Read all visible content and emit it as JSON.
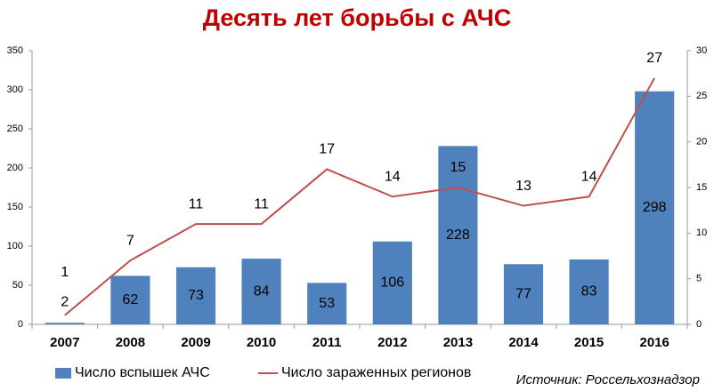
{
  "chart_data": {
    "type": "bar",
    "title": "Десять лет борьбы с АЧС",
    "categories": [
      "2007",
      "2008",
      "2009",
      "2010",
      "2011",
      "2012",
      "2013",
      "2014",
      "2015",
      "2016"
    ],
    "series": [
      {
        "name": "Число вспышек АЧС",
        "color": "#4f81bd",
        "values": [
          2,
          62,
          73,
          84,
          53,
          106,
          228,
          77,
          83,
          298
        ]
      },
      {
        "name": "Число зараженных регионов",
        "color": "#c0504d",
        "type": "line",
        "axis": "y2",
        "values": [
          1,
          7,
          11,
          11,
          17,
          14,
          15,
          13,
          14,
          27
        ]
      }
    ],
    "ylim": [
      0,
      350
    ],
    "yticks": [
      0,
      50,
      100,
      150,
      200,
      250,
      300,
      350
    ],
    "y2lim": [
      0,
      30
    ],
    "y2ticks": [
      0,
      5,
      10,
      15,
      20,
      25,
      30
    ],
    "grid": false,
    "source": "Источник: Россельхознадзор"
  }
}
